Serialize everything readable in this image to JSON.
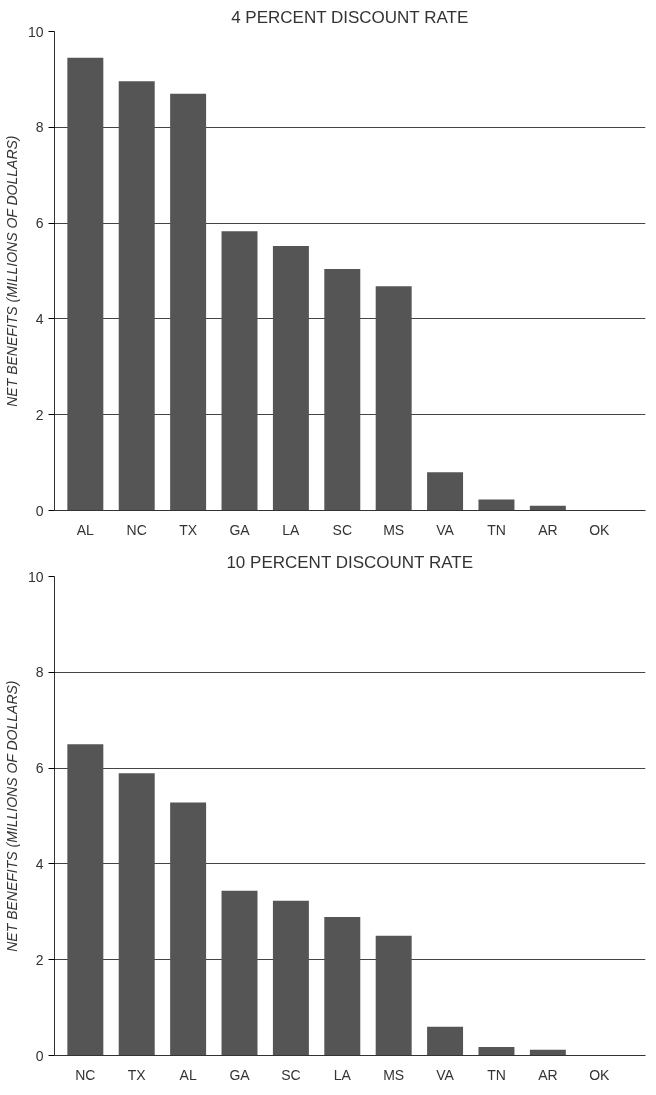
{
  "chart_data": [
    {
      "type": "bar",
      "title": "4 PERCENT DISCOUNT RATE",
      "ylabel": "NET BENEFITS (MILLIONS OF DOLLARS)",
      "categories": [
        "AL",
        "NC",
        "TX",
        "GA",
        "LA",
        "SC",
        "MS",
        "VA",
        "TN",
        "AR",
        "OK"
      ],
      "values": [
        9.45,
        8.96,
        8.7,
        5.83,
        5.52,
        5.04,
        4.68,
        0.8,
        0.23,
        0.1,
        0
      ],
      "color": "#555555",
      "ylim": [
        0,
        10
      ],
      "yticks": [
        0,
        2,
        4,
        6,
        8,
        10
      ],
      "grid": "y"
    },
    {
      "type": "bar",
      "title": "10 PERCENT DISCOUNT RATE",
      "ylabel": "NET BENEFITS (MILLIONS OF DOLLARS)",
      "categories": [
        "NC",
        "TX",
        "AL",
        "GA",
        "SC",
        "LA",
        "MS",
        "VA",
        "TN",
        "AR",
        "OK"
      ],
      "values": [
        6.5,
        5.89,
        5.28,
        3.44,
        3.23,
        2.89,
        2.5,
        0.6,
        0.18,
        0.12,
        0
      ],
      "color": "#555555",
      "ylim": [
        0,
        10
      ],
      "yticks": [
        0,
        2,
        4,
        6,
        8,
        10
      ],
      "grid": "y"
    }
  ]
}
